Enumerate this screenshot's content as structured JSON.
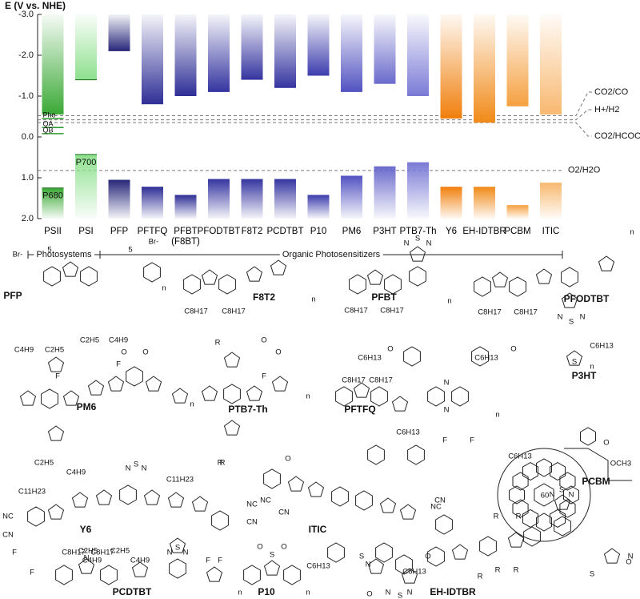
{
  "chart_data": {
    "type": "floating_bar",
    "y_label": "E (V vs. NHE)",
    "categories": [
      "PSII",
      "PSI",
      "PFP",
      "PFTFQ",
      "PFBT\n(F8BT)",
      "PFODTBT",
      "F8T2",
      "PCDTBT",
      "P10",
      "PM6",
      "P3HT",
      "PTB7-Th",
      "Y6",
      "EH-IDTBR",
      "PCBM",
      "ITIC"
    ],
    "colors": [
      "#3aa935",
      "#8ee08e",
      "#26267a",
      "#2e2e96",
      "#2e2e96",
      "#3434a0",
      "#3434a0",
      "#3434a0",
      "#3c3cae",
      "#5252c2",
      "#6a6acc",
      "#7a7ad6",
      "#f07f0c",
      "#f08a18",
      "#f5a040",
      "#f8b870"
    ],
    "series": [
      {
        "values": [
          -0.55,
          -1.4,
          -2.1,
          -0.8,
          -1.0,
          -1.1,
          -1.4,
          -1.2,
          -1.5,
          -1.1,
          -1.3,
          -1.0,
          -0.45,
          -0.35,
          -0.75,
          -0.55
        ]
      },
      {
        "values": [
          1.25,
          0.43,
          1.05,
          1.22,
          1.42,
          1.03,
          1.03,
          1.03,
          1.42,
          0.95,
          0.72,
          0.62,
          1.22,
          1.22,
          1.67,
          1.12
        ]
      }
    ],
    "bar_labels": [
      "P680",
      "P700"
    ],
    "levels": [
      {
        "label": "Phe",
        "value": -0.45
      },
      {
        "label": "QA",
        "value": -0.23
      },
      {
        "label": "QB",
        "value": -0.08
      }
    ],
    "references": [
      {
        "label": "CO2/CO",
        "value": -0.52
      },
      {
        "label": "H+/H2",
        "value": -0.42
      },
      {
        "label": "CO2/HCOO-",
        "value": -0.35
      },
      {
        "label": "O2/H2O",
        "value": 0.82
      }
    ],
    "groups": [
      {
        "label": "Photosystems"
      },
      {
        "label": "Organic Photosensitizers"
      }
    ],
    "ylim": [
      -3.0,
      2.0
    ],
    "yticks": [
      {
        "value": -3.0,
        "label": "-3.0"
      },
      {
        "value": -2.0,
        "label": "-2.0"
      },
      {
        "value": -1.0,
        "label": "-1.0"
      },
      {
        "value": 0.0,
        "label": "0.0"
      },
      {
        "value": 1.0,
        "label": "1.0"
      },
      {
        "value": 2.0,
        "label": "2.0"
      }
    ]
  },
  "structures": [
    {
      "name": "PFP",
      "labels": [
        "Br-",
        "Br-",
        "5",
        "5",
        "n"
      ]
    },
    {
      "name": "F8T2",
      "labels": [
        "C8H17",
        "C8H17",
        "n"
      ]
    },
    {
      "name": "PFBT",
      "labels": [
        "C8H17",
        "C8H17",
        "N",
        "S",
        "N",
        "n"
      ]
    },
    {
      "name": "PFODTBT",
      "labels": [
        "C8H17",
        "C8H17",
        "N",
        "S",
        "N",
        "n"
      ]
    },
    {
      "name": "P3HT",
      "labels": [
        "C6H13",
        "S",
        "n"
      ]
    },
    {
      "name": "PM6",
      "labels": [
        "C4H9",
        "C2H5",
        "C2H5",
        "C4H9",
        "F",
        "F",
        "C2H5",
        "C4H9",
        "O",
        "O",
        "n"
      ]
    },
    {
      "name": "PTB7-Th",
      "labels": [
        "R",
        "O",
        "O",
        "R",
        "F",
        "R",
        "n"
      ]
    },
    {
      "name": "PFTFQ",
      "labels": [
        "C6H13",
        "O",
        "O",
        "C6H13",
        "C8H17",
        "C8H17",
        "N",
        "N",
        "F",
        "F",
        "n"
      ]
    },
    {
      "name": "PCBM",
      "labels": [
        "60",
        "OCH3",
        "O"
      ]
    },
    {
      "name": "Y6",
      "labels": [
        "C11H23",
        "C11H23",
        "N",
        "S",
        "N",
        "NC",
        "CN",
        "NC",
        "CN",
        "C4H9",
        "C2H5",
        "C2H5",
        "C4H9",
        "F",
        "F",
        "F",
        "F"
      ]
    },
    {
      "name": "ITIC",
      "labels": [
        "C6H13",
        "C6H13",
        "C6H13",
        "C6H13",
        "NC",
        "CN",
        "NC",
        "CN",
        "O",
        "O"
      ]
    },
    {
      "name": "PCDTBT",
      "labels": [
        "C8H17",
        "C8H17",
        "N",
        "N",
        "S",
        "N",
        "n"
      ]
    },
    {
      "name": "P10",
      "labels": [
        "O",
        "O",
        "S",
        "n"
      ]
    },
    {
      "name": "EH-IDTBR",
      "labels": [
        "R",
        "R",
        "R",
        "R",
        "N",
        "S",
        "N",
        "N",
        "S",
        "N",
        "O",
        "O",
        "S",
        "S",
        "N",
        "N",
        "R"
      ]
    }
  ]
}
